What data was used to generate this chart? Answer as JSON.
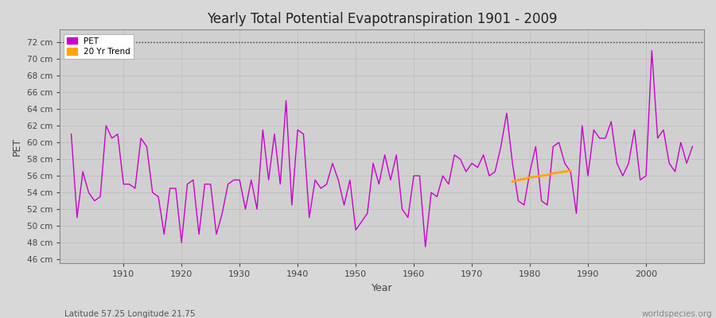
{
  "title": "Yearly Total Potential Evapotranspiration 1901 - 2009",
  "xlabel": "Year",
  "ylabel": "PET",
  "subtitle_left": "Latitude 57.25 Longitude 21.75",
  "subtitle_right": "worldspecies.org",
  "ylim": [
    45.5,
    73.5
  ],
  "ytick_labels": [
    "46 cm",
    "48 cm",
    "50 cm",
    "52 cm",
    "54 cm",
    "56 cm",
    "58 cm",
    "60 cm",
    "62 cm",
    "64 cm",
    "66 cm",
    "68 cm",
    "70 cm",
    "72 cm"
  ],
  "ytick_values": [
    46,
    48,
    50,
    52,
    54,
    56,
    58,
    60,
    62,
    64,
    66,
    68,
    70,
    72
  ],
  "pet_color": "#CC00CC",
  "trend_color": "#FFA500",
  "background_color": "#D8D8D8",
  "plot_bg_color": "#D0D0D0",
  "hline_y": 72,
  "xlim": [
    1899,
    2010
  ],
  "pet_data": {
    "1901": 61.0,
    "1902": 51.0,
    "1903": 56.5,
    "1904": 54.0,
    "1905": 53.0,
    "1906": 53.5,
    "1907": 62.0,
    "1908": 60.5,
    "1909": 61.0,
    "1910": 55.0,
    "1911": 55.0,
    "1912": 54.5,
    "1913": 60.5,
    "1914": 59.5,
    "1915": 54.0,
    "1916": 53.5,
    "1917": 49.0,
    "1918": 54.5,
    "1919": 54.5,
    "1920": 48.0,
    "1921": 55.0,
    "1922": 55.5,
    "1923": 49.0,
    "1924": 55.0,
    "1925": 55.0,
    "1926": 49.0,
    "1927": 51.5,
    "1928": 55.0,
    "1929": 55.5,
    "1930": 55.5,
    "1931": 52.0,
    "1932": 55.5,
    "1933": 52.0,
    "1934": 61.5,
    "1935": 55.5,
    "1936": 61.0,
    "1937": 55.0,
    "1938": 65.0,
    "1939": 52.5,
    "1940": 61.5,
    "1941": 61.0,
    "1942": 51.0,
    "1943": 55.5,
    "1944": 54.5,
    "1945": 55.0,
    "1946": 57.5,
    "1947": 55.5,
    "1948": 52.5,
    "1949": 55.5,
    "1950": 49.5,
    "1951": 50.5,
    "1952": 51.5,
    "1953": 57.5,
    "1954": 55.0,
    "1955": 58.5,
    "1956": 55.5,
    "1957": 58.5,
    "1958": 52.0,
    "1959": 51.0,
    "1960": 56.0,
    "1961": 56.0,
    "1962": 47.5,
    "1963": 54.0,
    "1964": 53.5,
    "1965": 56.0,
    "1966": 55.0,
    "1967": 58.5,
    "1968": 58.0,
    "1969": 56.5,
    "1970": 57.5,
    "1971": 57.0,
    "1972": 58.5,
    "1973": 56.0,
    "1974": 56.5,
    "1975": 59.5,
    "1976": 63.5,
    "1977": 57.5,
    "1978": 53.0,
    "1979": 52.5,
    "1980": 56.5,
    "1981": 59.5,
    "1982": 53.0,
    "1983": 52.5,
    "1984": 59.5,
    "1985": 60.0,
    "1986": 57.5,
    "1987": 56.5,
    "1988": 51.5,
    "1989": 62.0,
    "1990": 56.0,
    "1991": 61.5,
    "1992": 60.5,
    "1993": 60.5,
    "1994": 62.5,
    "1995": 57.5,
    "1996": 56.0,
    "1997": 57.5,
    "1998": 61.5,
    "1999": 55.5,
    "2000": 56.0,
    "2001": 71.0,
    "2002": 60.5,
    "2003": 61.5,
    "2004": 57.5,
    "2005": 56.5,
    "2006": 60.0,
    "2007": 57.5,
    "2008": 59.5
  },
  "trend_data": {
    "1977": 55.3,
    "1978": 55.5,
    "1979": 55.6,
    "1980": 55.8,
    "1981": 55.9,
    "1982": 56.0,
    "1983": 56.1,
    "1984": 56.3,
    "1985": 56.4,
    "1986": 56.5,
    "1987": 56.6
  }
}
